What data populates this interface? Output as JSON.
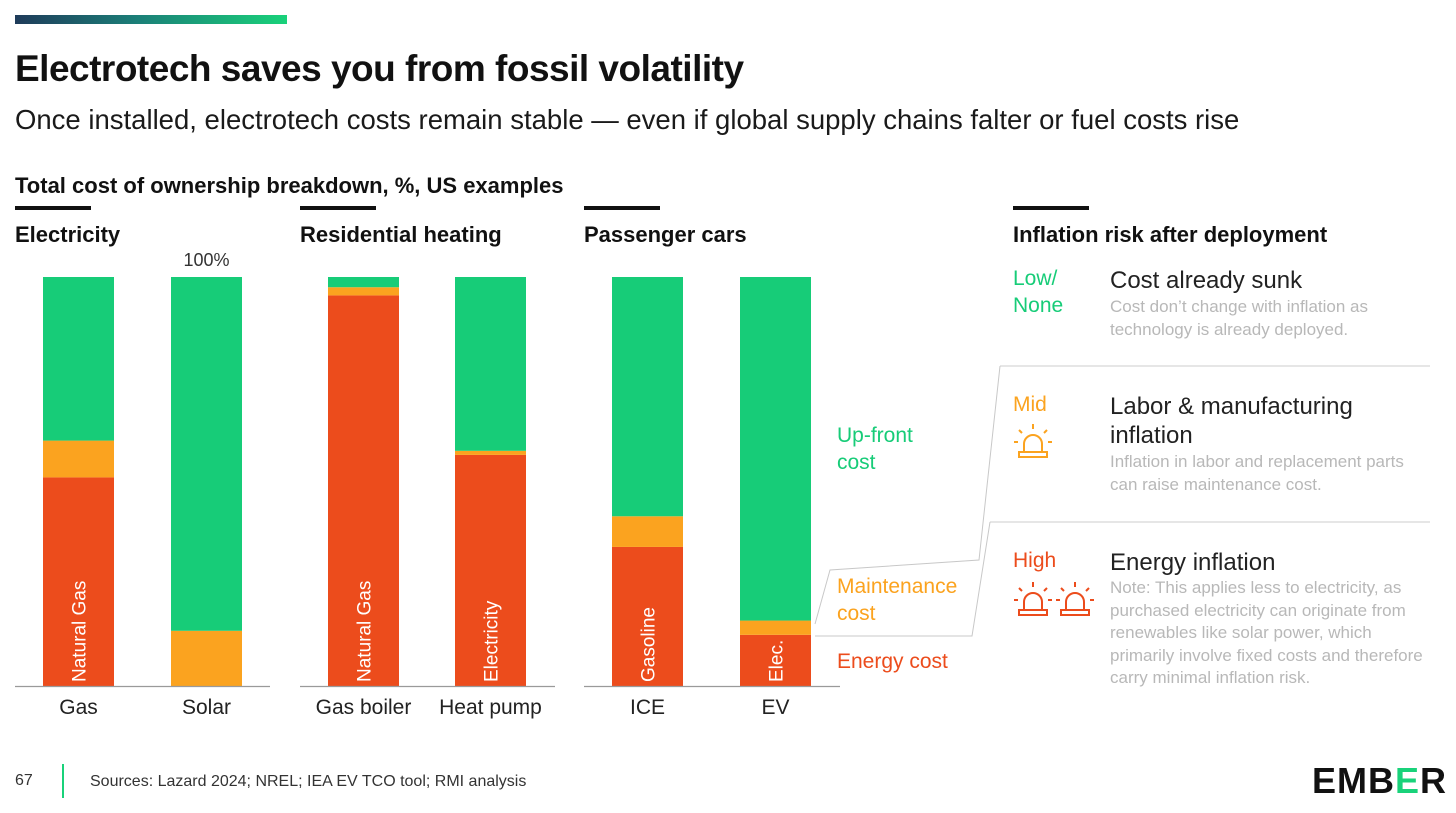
{
  "header": {
    "title": "Electrotech saves you from fossil volatility",
    "subtitle": "Once installed, electrotech costs remain stable — even if global supply chains falter or fuel costs rise"
  },
  "colors": {
    "upfront": "#17cc78",
    "maintenance": "#fba31f",
    "energy": "#ec4c1c",
    "axis": "#9a9a9a"
  },
  "chart_data": {
    "type": "bar",
    "stacked": true,
    "title": "Total cost of ownership breakdown, %, US examples",
    "unit": "%",
    "ylim": [
      0,
      100
    ],
    "max_label": "100%",
    "series_names": [
      "Energy cost",
      "Maintenance cost",
      "Up-front cost"
    ],
    "legend_labels": {
      "upfront": "Up-front cost",
      "maintenance": "Maintenance cost",
      "energy": "Energy cost"
    },
    "panels": [
      {
        "title": "Electricity",
        "bars": [
          {
            "category": "Gas",
            "energy": 51,
            "maintenance": 9,
            "upfront": 40,
            "energy_label": "Natural Gas"
          },
          {
            "category": "Solar",
            "energy": 0,
            "maintenance": 13.5,
            "upfront": 86.5,
            "energy_label": ""
          }
        ]
      },
      {
        "title": "Residential heating",
        "bars": [
          {
            "category": "Gas boiler",
            "energy": 95.5,
            "maintenance": 2,
            "upfront": 2.5,
            "energy_label": "Natural Gas"
          },
          {
            "category": "Heat pump",
            "energy": 56.5,
            "maintenance": 1,
            "upfront": 42.5,
            "energy_label": "Electricity"
          }
        ]
      },
      {
        "title": "Passenger cars",
        "bars": [
          {
            "category": "ICE",
            "energy": 34,
            "maintenance": 7.5,
            "upfront": 58.5,
            "energy_label": "Gasoline"
          },
          {
            "category": "EV",
            "energy": 12.5,
            "maintenance": 3.5,
            "upfront": 84,
            "energy_label": "Elec."
          }
        ]
      }
    ]
  },
  "risk": {
    "title": "Inflation risk after deployment",
    "items": [
      {
        "level": "Low/ None",
        "heading": "Cost already sunk",
        "desc": "Cost don’t change with inflation as technology is already deployed."
      },
      {
        "level": "Mid",
        "heading": "Labor & manufacturing inflation",
        "desc": "Inflation in labor and replacement parts can raise maintenance cost."
      },
      {
        "level": "High",
        "heading": "Energy inflation",
        "desc": "Note: This applies less to electricity, as purchased electricity can originate from renewables like solar power, which primarily involve fixed costs and therefore carry minimal inflation risk."
      }
    ]
  },
  "footer": {
    "page_number": "67",
    "sources": "Sources: Lazard 2024; NREL; IEA EV TCO tool; RMI analysis",
    "logo_left": "EMB",
    "logo_mid": "E",
    "logo_right": "R"
  }
}
